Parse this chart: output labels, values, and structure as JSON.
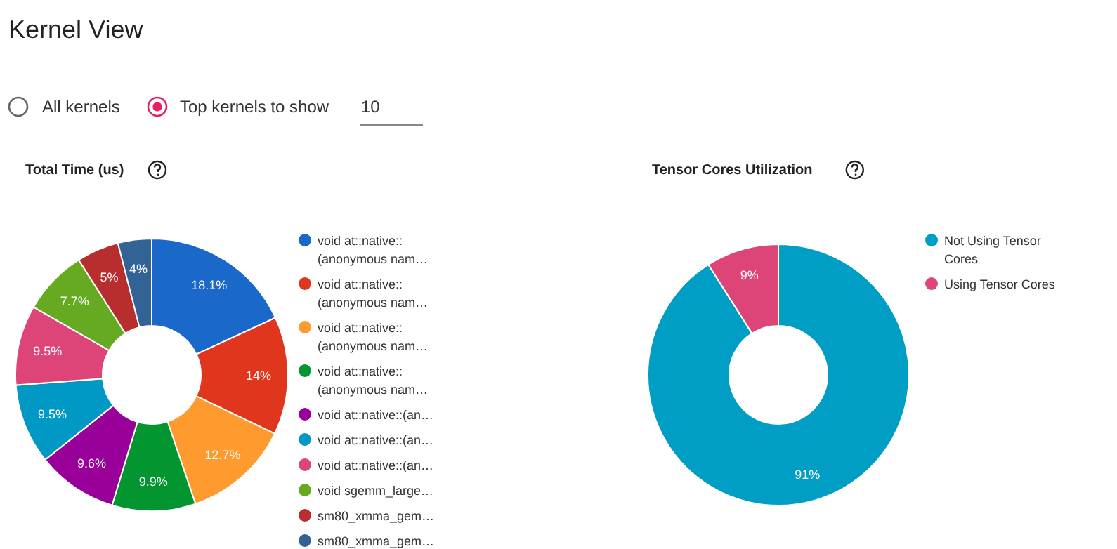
{
  "chart_data": [
    {
      "type": "donut",
      "title": "Total Time (us)",
      "annotations": [
        "Kernel View",
        "All kernels",
        "Top kernels to show",
        "10"
      ],
      "categories": [
        "void at::native::\n(anonymous nam…",
        "void at::native::\n(anonymous nam…",
        "void at::native::\n(anonymous nam…",
        "void at::native::\n(anonymous nam…",
        "void at::native::(an…",
        "void at::native::(an…",
        "void at::native::(an…",
        "void sgemm_large…",
        "sm80_xmma_gem…",
        "sm80_xmma_gem…"
      ],
      "values": [
        18.1,
        14,
        12.7,
        9.9,
        9.6,
        9.5,
        9.5,
        7.7,
        5,
        4
      ],
      "value_labels": [
        "18.1%",
        "14%",
        "12.7%",
        "9.9%",
        "9.6%",
        "9.5%",
        "9.5%",
        "7.7%",
        "5%",
        "4%"
      ],
      "colors": [
        "#1a68c9",
        "#e0361e",
        "#ff9a2e",
        "#03952f",
        "#990099",
        "#0099c6",
        "#dd4477",
        "#66aa22",
        "#b82e2e",
        "#316395"
      ],
      "legend": "right"
    },
    {
      "type": "donut",
      "title": "Tensor Cores Utilization",
      "categories": [
        "Not Using Tensor\nCores",
        "Using Tensor Cores"
      ],
      "values": [
        91,
        9
      ],
      "value_labels": [
        "91%",
        "9%"
      ],
      "colors": [
        "#009dc4",
        "#dd4477"
      ],
      "legend": "right"
    }
  ]
}
